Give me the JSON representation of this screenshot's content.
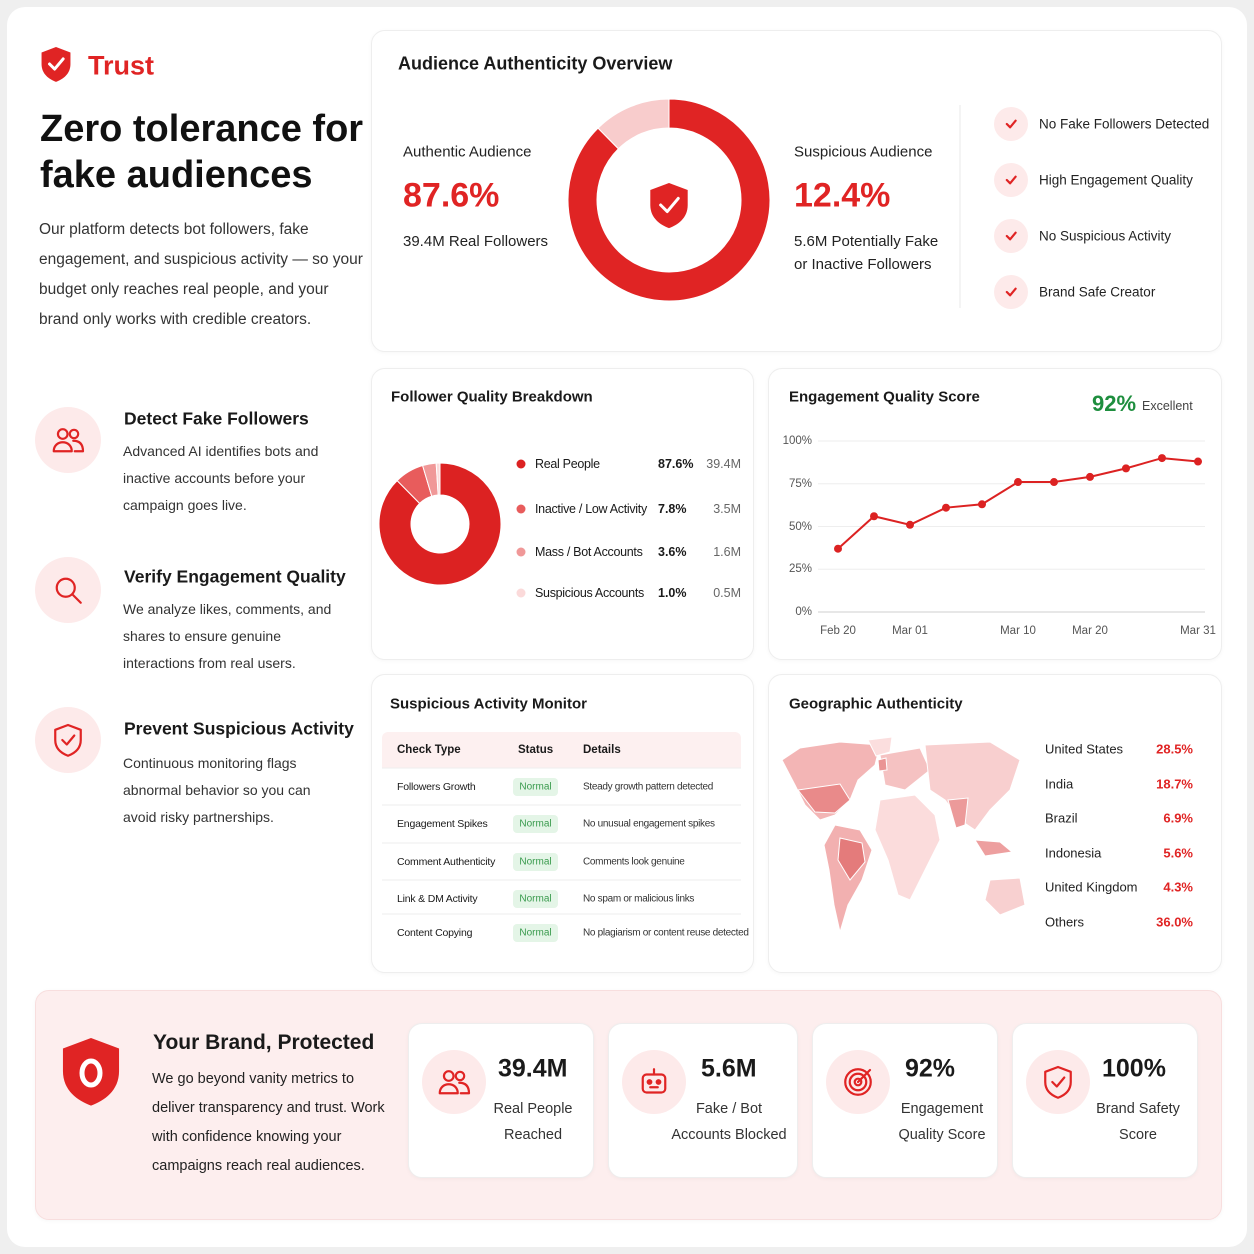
{
  "brand": "Trust",
  "hero": {
    "title": "Zero tolerance for fake audiences",
    "description": "Our platform detects bot followers, fake engagement, and suspicious activity — so your budget only reaches real people, and your brand only works with credible creators."
  },
  "features": [
    {
      "title": "Detect Fake Followers",
      "text": "Advanced AI identifies bots and inactive accounts before your campaign goes live."
    },
    {
      "title": "Verify Engagement Quality",
      "text": "We analyze likes, comments, and shares to ensure genuine interactions from real users."
    },
    {
      "title": "Prevent Suspicious Activity",
      "text": "Continuous monitoring flags abnormal behavior so you can avoid risky partnerships."
    }
  ],
  "checks": [
    "No Fake Followers Detected",
    "High Engagement Quality",
    "No Suspicious Activity",
    "Brand Safe Creator"
  ],
  "chart_data": [
    {
      "type": "pie",
      "title": "Audience Authenticity Overview",
      "categories": [
        "Authentic Audience",
        "Suspicious Audience"
      ],
      "values": [
        87.6,
        12.4
      ],
      "value_labels": [
        "87.6%",
        "12.4%"
      ],
      "captions": [
        "39.4M Real Followers",
        "5.6M Potentially Fake or Inactive Followers"
      ],
      "colors": [
        "#e02424",
        "#f8cccc"
      ]
    },
    {
      "type": "pie",
      "title": "Follower Quality Breakdown",
      "categories": [
        "Real People",
        "Inactive / Low Activity",
        "Mass / Bot Accounts",
        "Suspicious Accounts"
      ],
      "values": [
        87.6,
        7.8,
        3.6,
        1.0
      ],
      "value_labels": [
        "87.6%",
        "7.8%",
        "3.6%",
        "1.0%"
      ],
      "counts": [
        "39.4M",
        "3.5M",
        "1.6M",
        "0.5M"
      ],
      "colors": [
        "#dc2222",
        "#e85c5c",
        "#f09898",
        "#fbdada"
      ]
    },
    {
      "type": "line",
      "title": "Engagement Quality Score",
      "score": "92%",
      "rating": "Excellent",
      "categories": [
        "Feb 20",
        null,
        "Mar 01",
        null,
        null,
        "Mar 10",
        null,
        "Mar 20",
        null,
        null,
        "Mar 31"
      ],
      "values": [
        37,
        56,
        51,
        61,
        63,
        76,
        76,
        79,
        84,
        90,
        88
      ],
      "color": "#dc2222",
      "ylim": [
        0,
        100
      ],
      "yticks": [
        {
          "value": 0,
          "label": "0%"
        },
        {
          "value": 25,
          "label": "25%"
        },
        {
          "value": 50,
          "label": "50%"
        },
        {
          "value": 75,
          "label": "75%"
        },
        {
          "value": 100,
          "label": "100%"
        }
      ],
      "grid": true
    }
  ],
  "monitor": {
    "title": "Suspicious Activity Monitor",
    "header": [
      "Check Type",
      "Status",
      "Details"
    ],
    "rows": [
      [
        "Followers Growth",
        "Normal",
        "Steady growth pattern detected"
      ],
      [
        "Engagement Spikes",
        "Normal",
        "No unusual engagement spikes"
      ],
      [
        "Comment Authenticity",
        "Normal",
        "Comments look genuine"
      ],
      [
        "Link & DM Activity",
        "Normal",
        "No spam or malicious links"
      ],
      [
        "Content Copying",
        "Normal",
        "No plagiarism or content reuse detected"
      ]
    ]
  },
  "geo": {
    "title": "Geographic Authenticity",
    "rows": [
      [
        "United States",
        "28.5%"
      ],
      [
        "India",
        "18.7%"
      ],
      [
        "Brazil",
        "6.9%"
      ],
      [
        "Indonesia",
        "5.6%"
      ],
      [
        "United Kingdom",
        "4.3%"
      ],
      [
        "Others",
        "36.0%"
      ]
    ]
  },
  "footer": {
    "title": "Your Brand, Protected",
    "text": "We go beyond vanity metrics to deliver transparency and trust. Work with confidence knowing your campaigns reach real audiences.",
    "stats": [
      {
        "value": "39.4M",
        "label": "Real People Reached"
      },
      {
        "value": "5.6M",
        "label": "Fake / Bot Accounts Blocked"
      },
      {
        "value": "92%",
        "label": "Engagement Quality Score"
      },
      {
        "value": "100%",
        "label": "Brand Safety Score"
      }
    ]
  }
}
